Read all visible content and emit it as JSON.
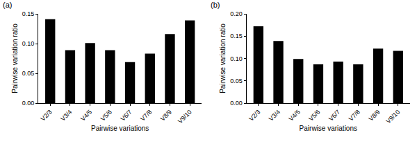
{
  "chart_data": [
    {
      "type": "bar",
      "title": "(a)",
      "x_label": "Pairwise variations",
      "y_label": "Pairwise variation ratio",
      "categories": [
        "V2/3",
        "V3/4",
        "V4/5",
        "V5/6",
        "V6/7",
        "V7/8",
        "V8/9",
        "V9/10"
      ],
      "values": [
        0.141,
        0.089,
        0.101,
        0.089,
        0.069,
        0.083,
        0.116,
        0.139
      ],
      "color": "#000000",
      "ylim": [
        0,
        0.15
      ],
      "yticks": [
        {
          "value": 0,
          "label": "0.00"
        },
        {
          "value": 0.05,
          "label": "0.05"
        },
        {
          "value": 0.1,
          "label": "0.10"
        },
        {
          "value": 0.15,
          "label": "0.15"
        }
      ],
      "grid": false
    },
    {
      "type": "bar",
      "title": "(b)",
      "x_label": "Pairwise variations",
      "y_label": "Pairwise variation ratio",
      "categories": [
        "V2/3",
        "V3/4",
        "V4/5",
        "V5/6",
        "V6/7",
        "V7/8",
        "V8/9",
        "V9/10"
      ],
      "values": [
        0.172,
        0.139,
        0.099,
        0.087,
        0.093,
        0.087,
        0.122,
        0.117
      ],
      "color": "#000000",
      "ylim": [
        0,
        0.2
      ],
      "yticks": [
        {
          "value": 0,
          "label": "0.00"
        },
        {
          "value": 0.05,
          "label": "0.05"
        },
        {
          "value": 0.1,
          "label": "0.10"
        },
        {
          "value": 0.15,
          "label": "0.15"
        },
        {
          "value": 0.2,
          "label": "0.20"
        }
      ],
      "grid": false
    }
  ]
}
